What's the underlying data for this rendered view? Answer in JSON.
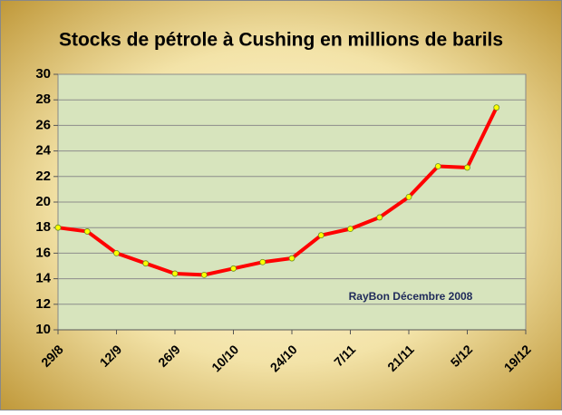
{
  "chart_data": {
    "type": "line",
    "title": "Stocks de pétrole à Cushing en millions de barils",
    "annotation": "RayBon Décembre 2008",
    "categories": [
      "29/8",
      null,
      "12/9",
      null,
      "26/9",
      null,
      "10/10",
      null,
      "24/10",
      null,
      "7/11",
      null,
      "21/11",
      null,
      "5/12",
      null,
      "19/12"
    ],
    "values": [
      18.0,
      17.7,
      16.0,
      15.2,
      14.4,
      14.3,
      14.8,
      15.3,
      15.6,
      17.4,
      17.9,
      18.8,
      20.4,
      22.8,
      22.7,
      27.4,
      null
    ],
    "color": "#ff0000",
    "marker_color": "#ffff00",
    "ylim": [
      10,
      30
    ],
    "yticks": [
      10,
      12,
      14,
      16,
      18,
      20,
      22,
      24,
      26,
      28,
      30
    ],
    "grid": true
  }
}
